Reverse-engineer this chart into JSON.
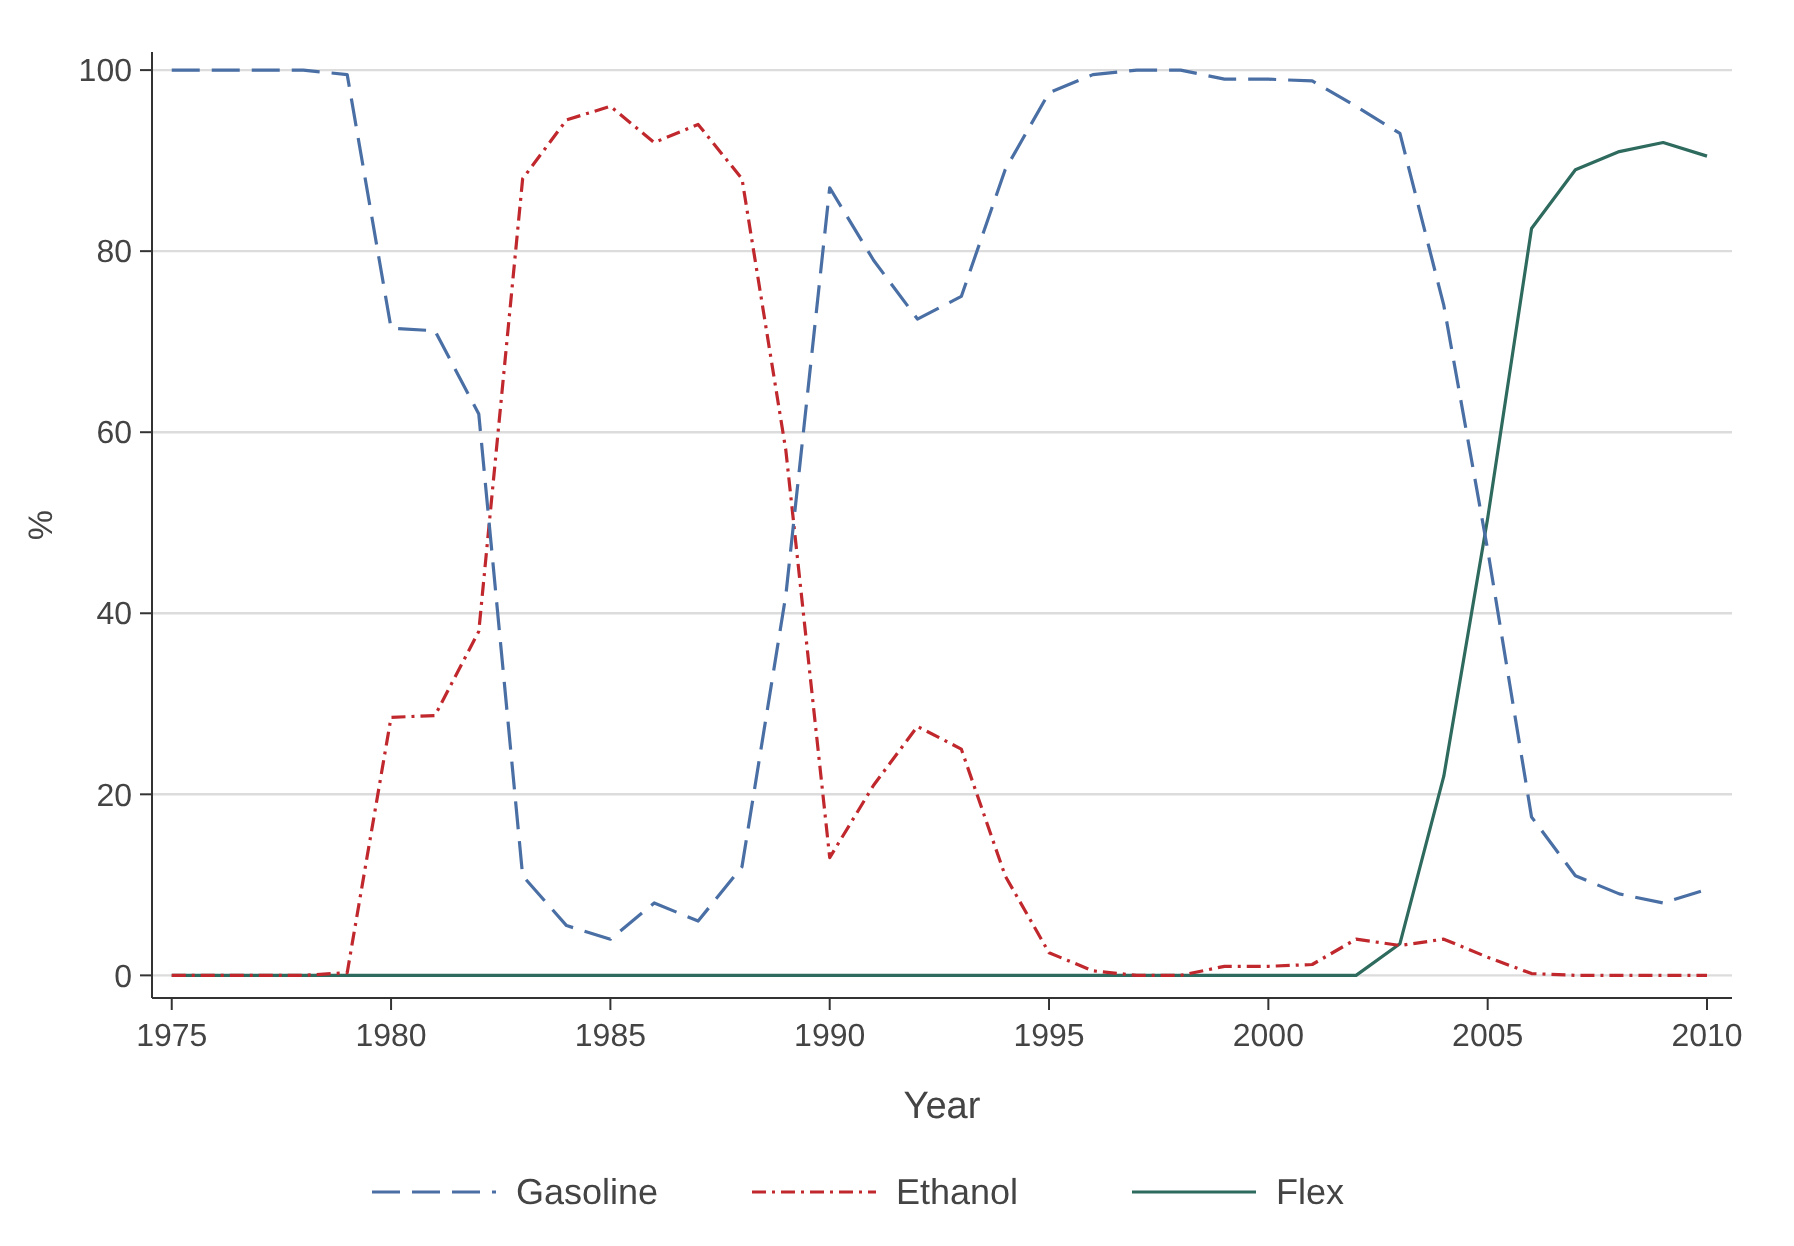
{
  "chart_data": {
    "type": "line",
    "xlabel": "Year",
    "ylabel": "%",
    "x": [
      1975,
      1976,
      1977,
      1978,
      1979,
      1980,
      1981,
      1982,
      1983,
      1984,
      1985,
      1986,
      1987,
      1988,
      1989,
      1990,
      1991,
      1992,
      1993,
      1994,
      1995,
      1996,
      1997,
      1998,
      1999,
      2000,
      2001,
      2002,
      2003,
      2004,
      2005,
      2006,
      2007,
      2008,
      2009,
      2010
    ],
    "series": [
      {
        "name": "Gasoline",
        "color": "#4a6fa5",
        "line_style": "dashed",
        "values": [
          100,
          100,
          100,
          100,
          99.5,
          71.5,
          71.2,
          62,
          11,
          5.5,
          4,
          8,
          6,
          12,
          42,
          87,
          79,
          72.5,
          75,
          89,
          97.5,
          99.5,
          100,
          100,
          99,
          99,
          98.8,
          96,
          93,
          74,
          47,
          17.5,
          11,
          9,
          8,
          9.5
        ]
      },
      {
        "name": "Ethanol",
        "color": "#c0282d",
        "line_style": "dotted",
        "values": [
          0,
          0,
          0,
          0,
          0.3,
          28.5,
          28.7,
          38,
          88,
          94.5,
          96,
          92,
          94,
          88,
          58,
          13,
          21,
          27.5,
          25,
          11,
          2.5,
          0.5,
          0,
          0,
          1,
          1,
          1.2,
          4,
          3.3,
          4,
          2,
          0.2,
          0,
          0,
          0,
          0
        ]
      },
      {
        "name": "Flex",
        "color": "#2e6b5e",
        "line_style": "solid",
        "values": [
          0,
          0,
          0,
          0,
          0,
          0,
          0,
          0,
          0,
          0,
          0,
          0,
          0,
          0,
          0,
          0,
          0,
          0,
          0,
          0,
          0,
          0,
          0,
          0,
          0,
          0,
          0,
          0,
          3.5,
          22,
          50.5,
          82.5,
          89,
          91,
          92,
          90.5
        ]
      }
    ],
    "xlim": [
      1974.55,
      2010.57
    ],
    "xticks": [
      1975,
      1980,
      1985,
      1990,
      1995,
      2000,
      2005,
      2010
    ],
    "ylim": [
      -2.5,
      102
    ],
    "yticks": [
      0,
      20,
      40,
      60,
      80,
      100
    ],
    "grid": "y",
    "legend": "bottom",
    "marker": "none"
  }
}
